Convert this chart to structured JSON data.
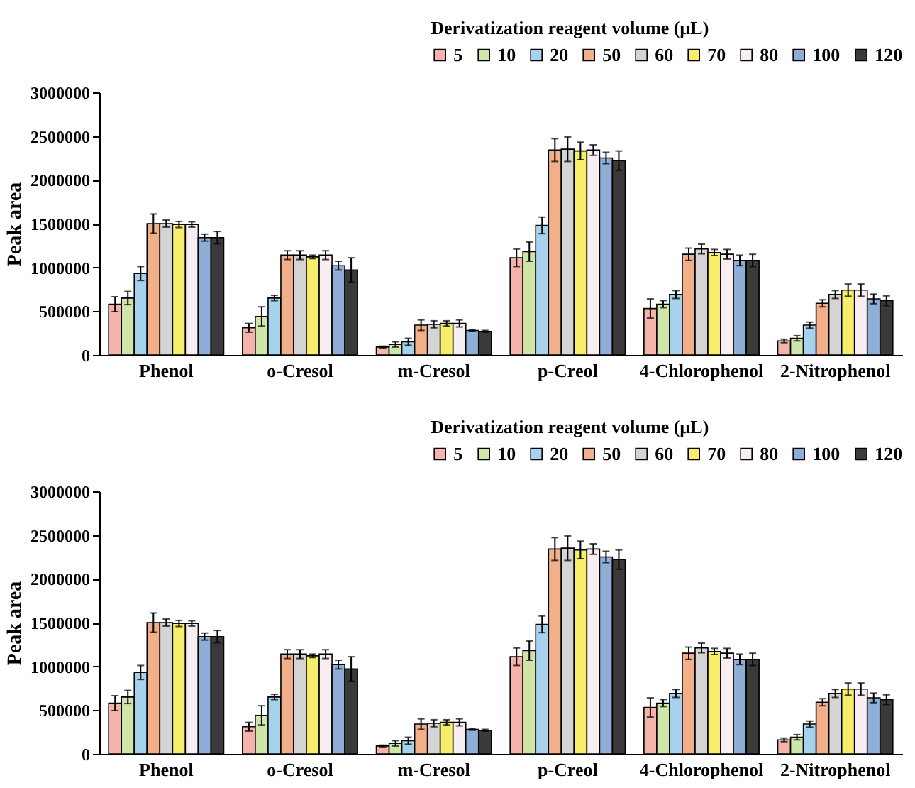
{
  "chart_data": [
    {
      "type": "bar",
      "ylabel": "Peak area",
      "legend_title": "Derivatization reagent volume (µL)",
      "legend": "top right",
      "categories": [
        "Phenol",
        "o-Cresol",
        "m-Cresol",
        "p-Creol",
        "4-Chlorophenol",
        "2-Nitrophenol"
      ],
      "ylim": [
        0,
        3000000
      ],
      "yticks": [
        0,
        500000,
        1000000,
        1500000,
        2000000,
        2500000,
        3000000
      ],
      "series": [
        {
          "name": "5",
          "color": "#f4b4ac",
          "values": [
            580000,
            310000,
            90000,
            1110000,
            530000,
            160000
          ],
          "errors": [
            85000,
            50000,
            10000,
            100000,
            110000,
            20000
          ]
        },
        {
          "name": "10",
          "color": "#cfe6a8",
          "values": [
            650000,
            440000,
            120000,
            1180000,
            580000,
            190000
          ],
          "errors": [
            75000,
            110000,
            30000,
            110000,
            40000,
            30000
          ]
        },
        {
          "name": "20",
          "color": "#a6d2ee",
          "values": [
            930000,
            650000,
            150000,
            1480000,
            690000,
            340000
          ],
          "errors": [
            80000,
            30000,
            40000,
            95000,
            45000,
            35000
          ]
        },
        {
          "name": "50",
          "color": "#f2b08a",
          "values": [
            1500000,
            1140000,
            340000,
            2340000,
            1150000,
            590000
          ],
          "errors": [
            110000,
            50000,
            60000,
            130000,
            70000,
            40000
          ]
        },
        {
          "name": "60",
          "color": "#d4d4d4",
          "values": [
            1500000,
            1140000,
            350000,
            2350000,
            1210000,
            690000
          ],
          "errors": [
            40000,
            50000,
            40000,
            140000,
            55000,
            45000
          ]
        },
        {
          "name": "70",
          "color": "#f6ee6a",
          "values": [
            1490000,
            1120000,
            360000,
            2330000,
            1170000,
            740000
          ],
          "errors": [
            35000,
            20000,
            30000,
            100000,
            35000,
            70000
          ]
        },
        {
          "name": "80",
          "color": "#f8eef2",
          "values": [
            1490000,
            1140000,
            360000,
            2340000,
            1150000,
            740000
          ],
          "errors": [
            30000,
            50000,
            40000,
            60000,
            55000,
            70000
          ]
        },
        {
          "name": "100",
          "color": "#8eaed6",
          "values": [
            1340000,
            1020000,
            280000,
            2250000,
            1080000,
            640000
          ],
          "errors": [
            40000,
            50000,
            10000,
            65000,
            60000,
            55000
          ]
        },
        {
          "name": "120",
          "color": "#3a3a3a",
          "values": [
            1340000,
            970000,
            270000,
            2220000,
            1080000,
            620000
          ],
          "errors": [
            70000,
            140000,
            10000,
            110000,
            70000,
            55000
          ]
        }
      ]
    },
    {
      "type": "bar",
      "ylabel": "Peak area",
      "legend_title": "Derivatization reagent volume (µL)",
      "legend": "top right",
      "categories": [
        "Phenol",
        "o-Cresol",
        "m-Cresol",
        "p-Creol",
        "4-Chlorophenol",
        "2-Nitrophenol"
      ],
      "ylim": [
        0,
        3000000
      ],
      "yticks": [
        0,
        500000,
        1000000,
        1500000,
        2000000,
        2500000,
        3000000
      ],
      "series": [
        {
          "name": "5",
          "color": "#f4b4ac",
          "values": [
            580000,
            310000,
            90000,
            1110000,
            530000,
            160000
          ],
          "errors": [
            85000,
            50000,
            10000,
            100000,
            110000,
            20000
          ]
        },
        {
          "name": "10",
          "color": "#cfe6a8",
          "values": [
            650000,
            440000,
            120000,
            1180000,
            580000,
            190000
          ],
          "errors": [
            75000,
            110000,
            30000,
            110000,
            40000,
            30000
          ]
        },
        {
          "name": "20",
          "color": "#a6d2ee",
          "values": [
            930000,
            650000,
            150000,
            1480000,
            690000,
            340000
          ],
          "errors": [
            80000,
            30000,
            40000,
            95000,
            45000,
            35000
          ]
        },
        {
          "name": "50",
          "color": "#f2b08a",
          "values": [
            1500000,
            1140000,
            340000,
            2340000,
            1150000,
            590000
          ],
          "errors": [
            110000,
            50000,
            60000,
            130000,
            70000,
            40000
          ]
        },
        {
          "name": "60",
          "color": "#d4d4d4",
          "values": [
            1500000,
            1140000,
            350000,
            2350000,
            1210000,
            690000
          ],
          "errors": [
            40000,
            50000,
            40000,
            140000,
            55000,
            45000
          ]
        },
        {
          "name": "70",
          "color": "#f6ee6a",
          "values": [
            1490000,
            1120000,
            360000,
            2330000,
            1170000,
            740000
          ],
          "errors": [
            35000,
            20000,
            30000,
            100000,
            35000,
            70000
          ]
        },
        {
          "name": "80",
          "color": "#f8eef2",
          "values": [
            1490000,
            1140000,
            360000,
            2340000,
            1150000,
            740000
          ],
          "errors": [
            30000,
            50000,
            40000,
            60000,
            55000,
            70000
          ]
        },
        {
          "name": "100",
          "color": "#8eaed6",
          "values": [
            1340000,
            1020000,
            280000,
            2250000,
            1080000,
            640000
          ],
          "errors": [
            40000,
            50000,
            10000,
            65000,
            60000,
            55000
          ]
        },
        {
          "name": "120",
          "color": "#3a3a3a",
          "values": [
            1340000,
            970000,
            270000,
            2220000,
            1080000,
            620000
          ],
          "errors": [
            70000,
            140000,
            10000,
            110000,
            70000,
            55000
          ]
        }
      ]
    }
  ]
}
